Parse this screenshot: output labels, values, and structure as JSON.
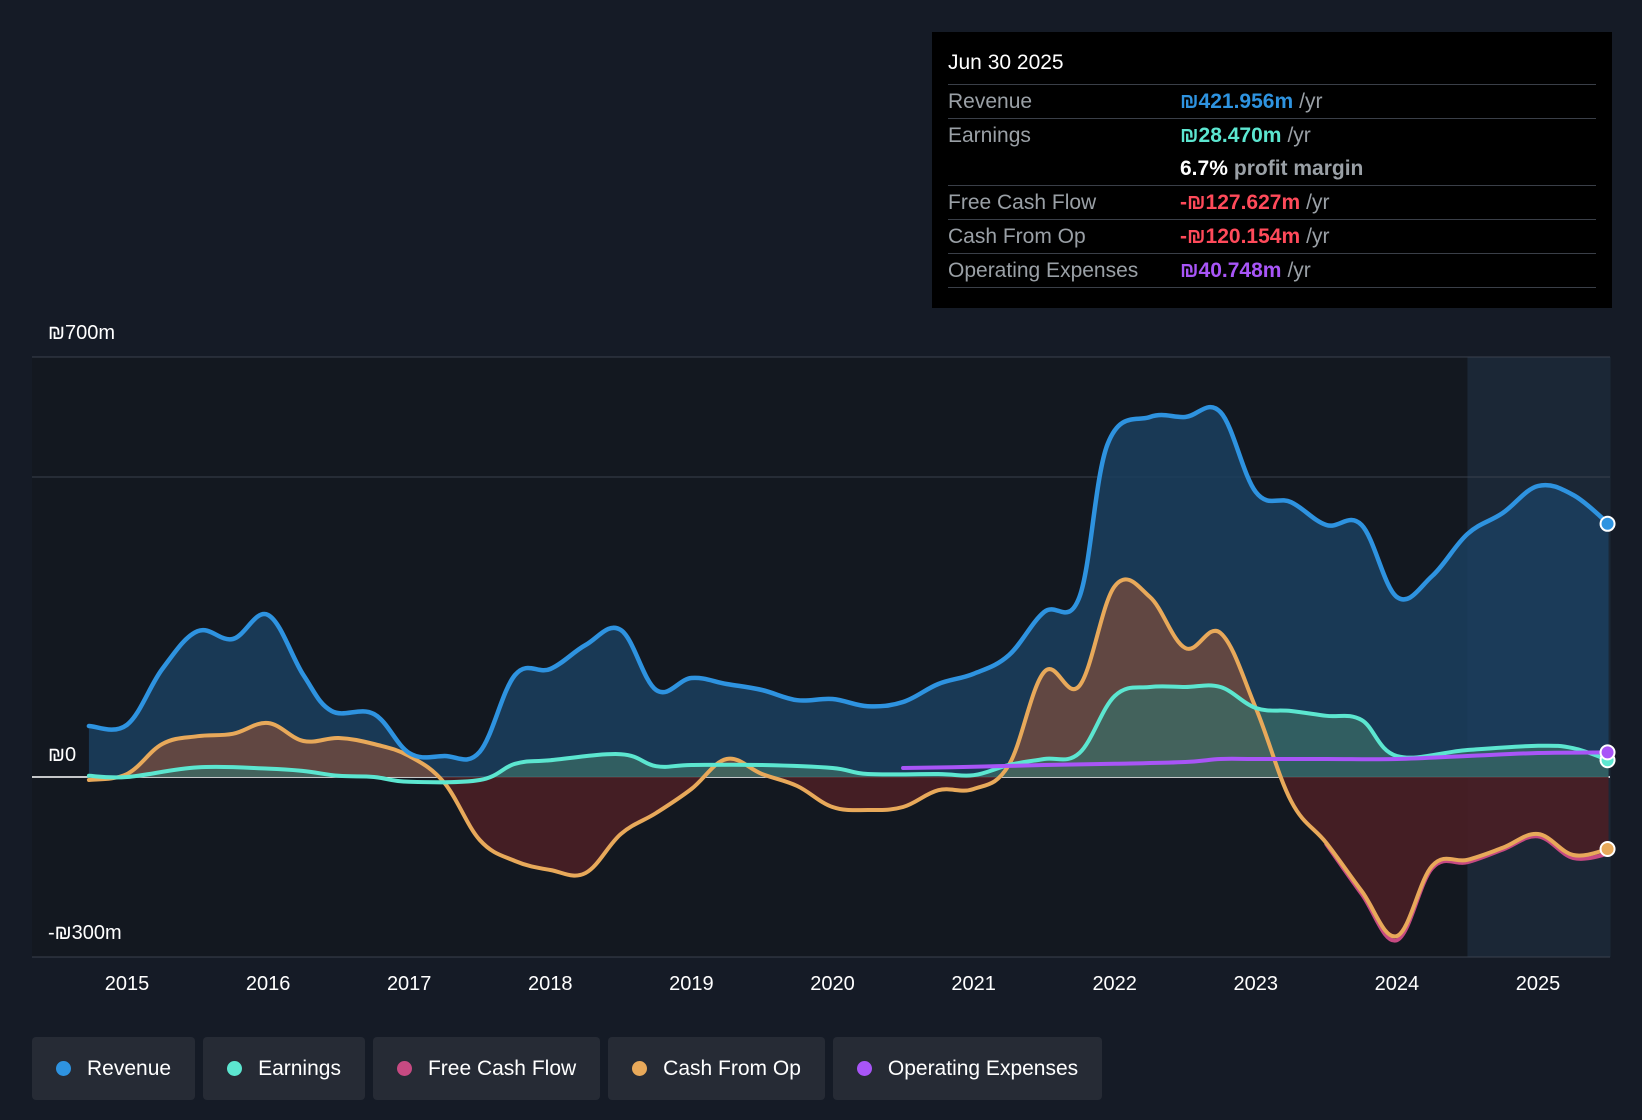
{
  "tooltip": {
    "date": "Jun 30 2025",
    "rows": [
      {
        "label": "Revenue",
        "value": "₪421.956m",
        "unit": "/yr",
        "color": "#2e93e0"
      },
      {
        "label": "Earnings",
        "value": "₪28.470m",
        "unit": "/yr",
        "color": "#5ce6d0"
      },
      {
        "margin_pct": "6.7%",
        "margin_text": "profit margin"
      },
      {
        "label": "Free Cash Flow",
        "value": "-₪127.627m",
        "unit": "/yr",
        "color": "#ff4a5a"
      },
      {
        "label": "Cash From Op",
        "value": "-₪120.154m",
        "unit": "/yr",
        "color": "#ff4a5a"
      },
      {
        "label": "Operating Expenses",
        "value": "₪40.748m",
        "unit": "/yr",
        "color": "#a855f7"
      }
    ]
  },
  "legend": [
    {
      "label": "Revenue",
      "color": "#2e93e0"
    },
    {
      "label": "Earnings",
      "color": "#5ce6d0"
    },
    {
      "label": "Free Cash Flow",
      "color": "#c74a82"
    },
    {
      "label": "Cash From Op",
      "color": "#e8a95a"
    },
    {
      "label": "Operating Expenses",
      "color": "#a855f7"
    }
  ],
  "chart_data": {
    "type": "area",
    "title": "",
    "xlabel": "",
    "ylabel": "",
    "ylim": [
      -300,
      700
    ],
    "y_tick_labels": [
      {
        "value": 700,
        "label": "₪700m"
      },
      {
        "value": 0,
        "label": "₪0"
      },
      {
        "value": -300,
        "label": "-₪300m"
      }
    ],
    "gridlines": [
      700,
      500,
      0
    ],
    "xlim": [
      2014.7,
      2025.5
    ],
    "x_ticks": [
      2015,
      2016,
      2017,
      2018,
      2019,
      2020,
      2021,
      2022,
      2023,
      2024,
      2025
    ],
    "x_tick_labels": [
      "2015",
      "2016",
      "2017",
      "2018",
      "2019",
      "2020",
      "2021",
      "2022",
      "2023",
      "2024",
      "2025"
    ],
    "forecast_start": 2024.5,
    "series": [
      {
        "name": "Revenue",
        "color": "#2e93e0",
        "fill": "#1b3f5f",
        "points": [
          [
            2014.73,
            85
          ],
          [
            2015,
            87
          ],
          [
            2015.25,
            180
          ],
          [
            2015.5,
            243
          ],
          [
            2015.75,
            230
          ],
          [
            2016,
            270
          ],
          [
            2016.25,
            170
          ],
          [
            2016.45,
            110
          ],
          [
            2016.75,
            105
          ],
          [
            2017,
            40
          ],
          [
            2017.25,
            35
          ],
          [
            2017.5,
            42
          ],
          [
            2017.75,
            170
          ],
          [
            2018,
            180
          ],
          [
            2018.25,
            220
          ],
          [
            2018.5,
            245
          ],
          [
            2018.75,
            145
          ],
          [
            2019,
            165
          ],
          [
            2019.25,
            155
          ],
          [
            2019.5,
            145
          ],
          [
            2019.75,
            128
          ],
          [
            2020,
            130
          ],
          [
            2020.25,
            118
          ],
          [
            2020.5,
            125
          ],
          [
            2020.75,
            155
          ],
          [
            2021,
            172
          ],
          [
            2021.25,
            203
          ],
          [
            2021.5,
            275
          ],
          [
            2021.75,
            300
          ],
          [
            2021.95,
            555
          ],
          [
            2022.25,
            600
          ],
          [
            2022.5,
            600
          ],
          [
            2022.75,
            608
          ],
          [
            2023,
            475
          ],
          [
            2023.25,
            458
          ],
          [
            2023.5,
            420
          ],
          [
            2023.75,
            420
          ],
          [
            2024,
            300
          ],
          [
            2024.25,
            335
          ],
          [
            2024.5,
            405
          ],
          [
            2024.75,
            440
          ],
          [
            2025,
            485
          ],
          [
            2025.25,
            470
          ],
          [
            2025.5,
            422
          ]
        ]
      },
      {
        "name": "Earnings",
        "color": "#5ce6d0",
        "fill": "#3a6b66",
        "points": [
          [
            2014.73,
            2
          ],
          [
            2015,
            0
          ],
          [
            2015.5,
            16
          ],
          [
            2016,
            14
          ],
          [
            2016.25,
            10
          ],
          [
            2016.5,
            2
          ],
          [
            2016.75,
            0
          ],
          [
            2017,
            -8
          ],
          [
            2017.5,
            -5
          ],
          [
            2017.75,
            22
          ],
          [
            2018,
            28
          ],
          [
            2018.5,
            38
          ],
          [
            2018.75,
            18
          ],
          [
            2019,
            20
          ],
          [
            2019.5,
            20
          ],
          [
            2020,
            15
          ],
          [
            2020.25,
            5
          ],
          [
            2020.75,
            5
          ],
          [
            2021,
            3
          ],
          [
            2021.25,
            20
          ],
          [
            2021.5,
            30
          ],
          [
            2021.75,
            40
          ],
          [
            2022,
            135
          ],
          [
            2022.25,
            150
          ],
          [
            2022.5,
            150
          ],
          [
            2022.75,
            150
          ],
          [
            2023,
            115
          ],
          [
            2023.25,
            110
          ],
          [
            2023.5,
            102
          ],
          [
            2023.75,
            95
          ],
          [
            2024,
            35
          ],
          [
            2024.5,
            45
          ],
          [
            2025,
            52
          ],
          [
            2025.25,
            48
          ],
          [
            2025.5,
            28
          ]
        ]
      },
      {
        "name": "Cash From Op",
        "color": "#e8a95a",
        "fill_pos": "#6e4a40",
        "fill_neg": "#4a1f25",
        "points": [
          [
            2014.73,
            -5
          ],
          [
            2015,
            5
          ],
          [
            2015.25,
            55
          ],
          [
            2015.5,
            68
          ],
          [
            2015.75,
            72
          ],
          [
            2016,
            90
          ],
          [
            2016.25,
            60
          ],
          [
            2016.5,
            65
          ],
          [
            2016.75,
            55
          ],
          [
            2017,
            35
          ],
          [
            2017.25,
            -10
          ],
          [
            2017.5,
            -105
          ],
          [
            2017.75,
            -140
          ],
          [
            2018,
            -155
          ],
          [
            2018.25,
            -160
          ],
          [
            2018.5,
            -95
          ],
          [
            2018.75,
            -60
          ],
          [
            2019,
            -20
          ],
          [
            2019.25,
            30
          ],
          [
            2019.5,
            5
          ],
          [
            2019.75,
            -15
          ],
          [
            2020,
            -50
          ],
          [
            2020.25,
            -55
          ],
          [
            2020.5,
            -50
          ],
          [
            2020.75,
            -22
          ],
          [
            2021,
            -20
          ],
          [
            2021.25,
            20
          ],
          [
            2021.5,
            175
          ],
          [
            2021.75,
            152
          ],
          [
            2022,
            318
          ],
          [
            2022.25,
            300
          ],
          [
            2022.5,
            215
          ],
          [
            2022.75,
            240
          ],
          [
            2023,
            115
          ],
          [
            2023.25,
            -40
          ],
          [
            2023.5,
            -110
          ],
          [
            2023.75,
            -190
          ],
          [
            2024,
            -265
          ],
          [
            2024.25,
            -148
          ],
          [
            2024.5,
            -138
          ],
          [
            2024.75,
            -118
          ],
          [
            2025,
            -95
          ],
          [
            2025.25,
            -130
          ],
          [
            2025.5,
            -120
          ]
        ]
      },
      {
        "name": "Free Cash Flow",
        "color": "#c74a82",
        "points": [
          [
            2023.5,
            -112
          ],
          [
            2023.75,
            -195
          ],
          [
            2024,
            -272
          ],
          [
            2024.25,
            -152
          ],
          [
            2024.5,
            -142
          ],
          [
            2024.75,
            -121
          ],
          [
            2025,
            -99
          ],
          [
            2025.25,
            -135
          ],
          [
            2025.5,
            -128
          ]
        ]
      },
      {
        "name": "Operating Expenses",
        "color": "#a855f7",
        "points": [
          [
            2020.5,
            15
          ],
          [
            2021,
            17
          ],
          [
            2021.5,
            20
          ],
          [
            2022,
            22
          ],
          [
            2022.5,
            25
          ],
          [
            2022.75,
            30
          ],
          [
            2023,
            30
          ],
          [
            2023.5,
            30
          ],
          [
            2024,
            30
          ],
          [
            2024.5,
            35
          ],
          [
            2025,
            40
          ],
          [
            2025.5,
            41
          ]
        ]
      }
    ]
  }
}
